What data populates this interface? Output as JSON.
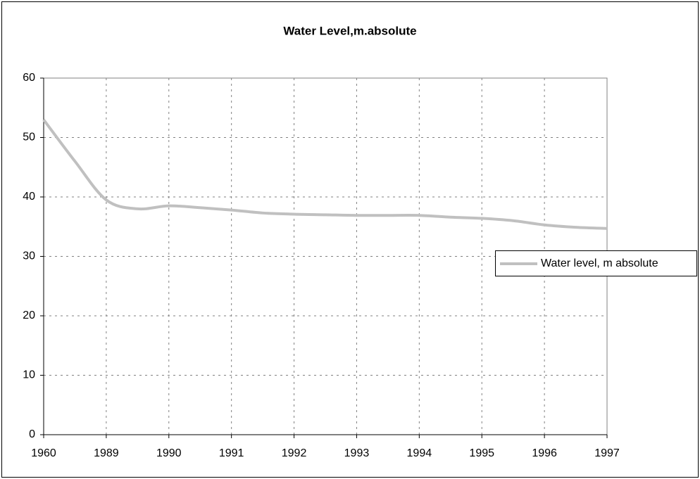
{
  "chart_data": {
    "type": "line",
    "title": "Water Level,m.absolute",
    "categories": [
      "1960",
      null,
      "1989",
      null,
      "1990",
      null,
      "1991",
      null,
      "1992",
      null,
      "1993",
      null,
      "1994",
      null,
      "1995",
      null,
      "1996",
      null,
      "1997"
    ],
    "series": [
      {
        "name": "Water level, m absolute",
        "color": "#c0c0c0",
        "values": [
          53,
          46,
          39.5,
          38,
          38.5,
          38.2,
          37.8,
          37.3,
          37.1,
          37,
          36.9,
          36.9,
          36.9,
          36.6,
          36.4,
          36,
          35.3,
          34.9,
          34.7
        ]
      }
    ],
    "ylim": [
      0,
      60
    ],
    "yticks": [
      0,
      10,
      20,
      30,
      40,
      50,
      60
    ],
    "grid": true,
    "legend": "right"
  }
}
